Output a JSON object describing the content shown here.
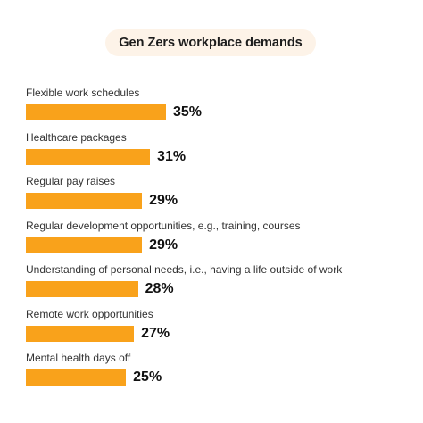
{
  "chart_data": {
    "type": "bar",
    "orientation": "horizontal",
    "title": "Gen Zers workplace demands",
    "categories": [
      "Flexible work schedules",
      "Healthcare packages",
      "Regular pay raises",
      "Regular development opportunities, e.g., training, courses",
      "Understanding of personal needs, i.e., having a life outside of work",
      "Remote work opportunities",
      "Mental health days off"
    ],
    "values": [
      35,
      31,
      29,
      29,
      28,
      27,
      25
    ],
    "value_labels": [
      "35%",
      "31%",
      "29%",
      "29%",
      "28%",
      "27%",
      "25%"
    ],
    "unit": "%",
    "bar_color": "#f9a21b",
    "grid": false,
    "legend": "none"
  }
}
